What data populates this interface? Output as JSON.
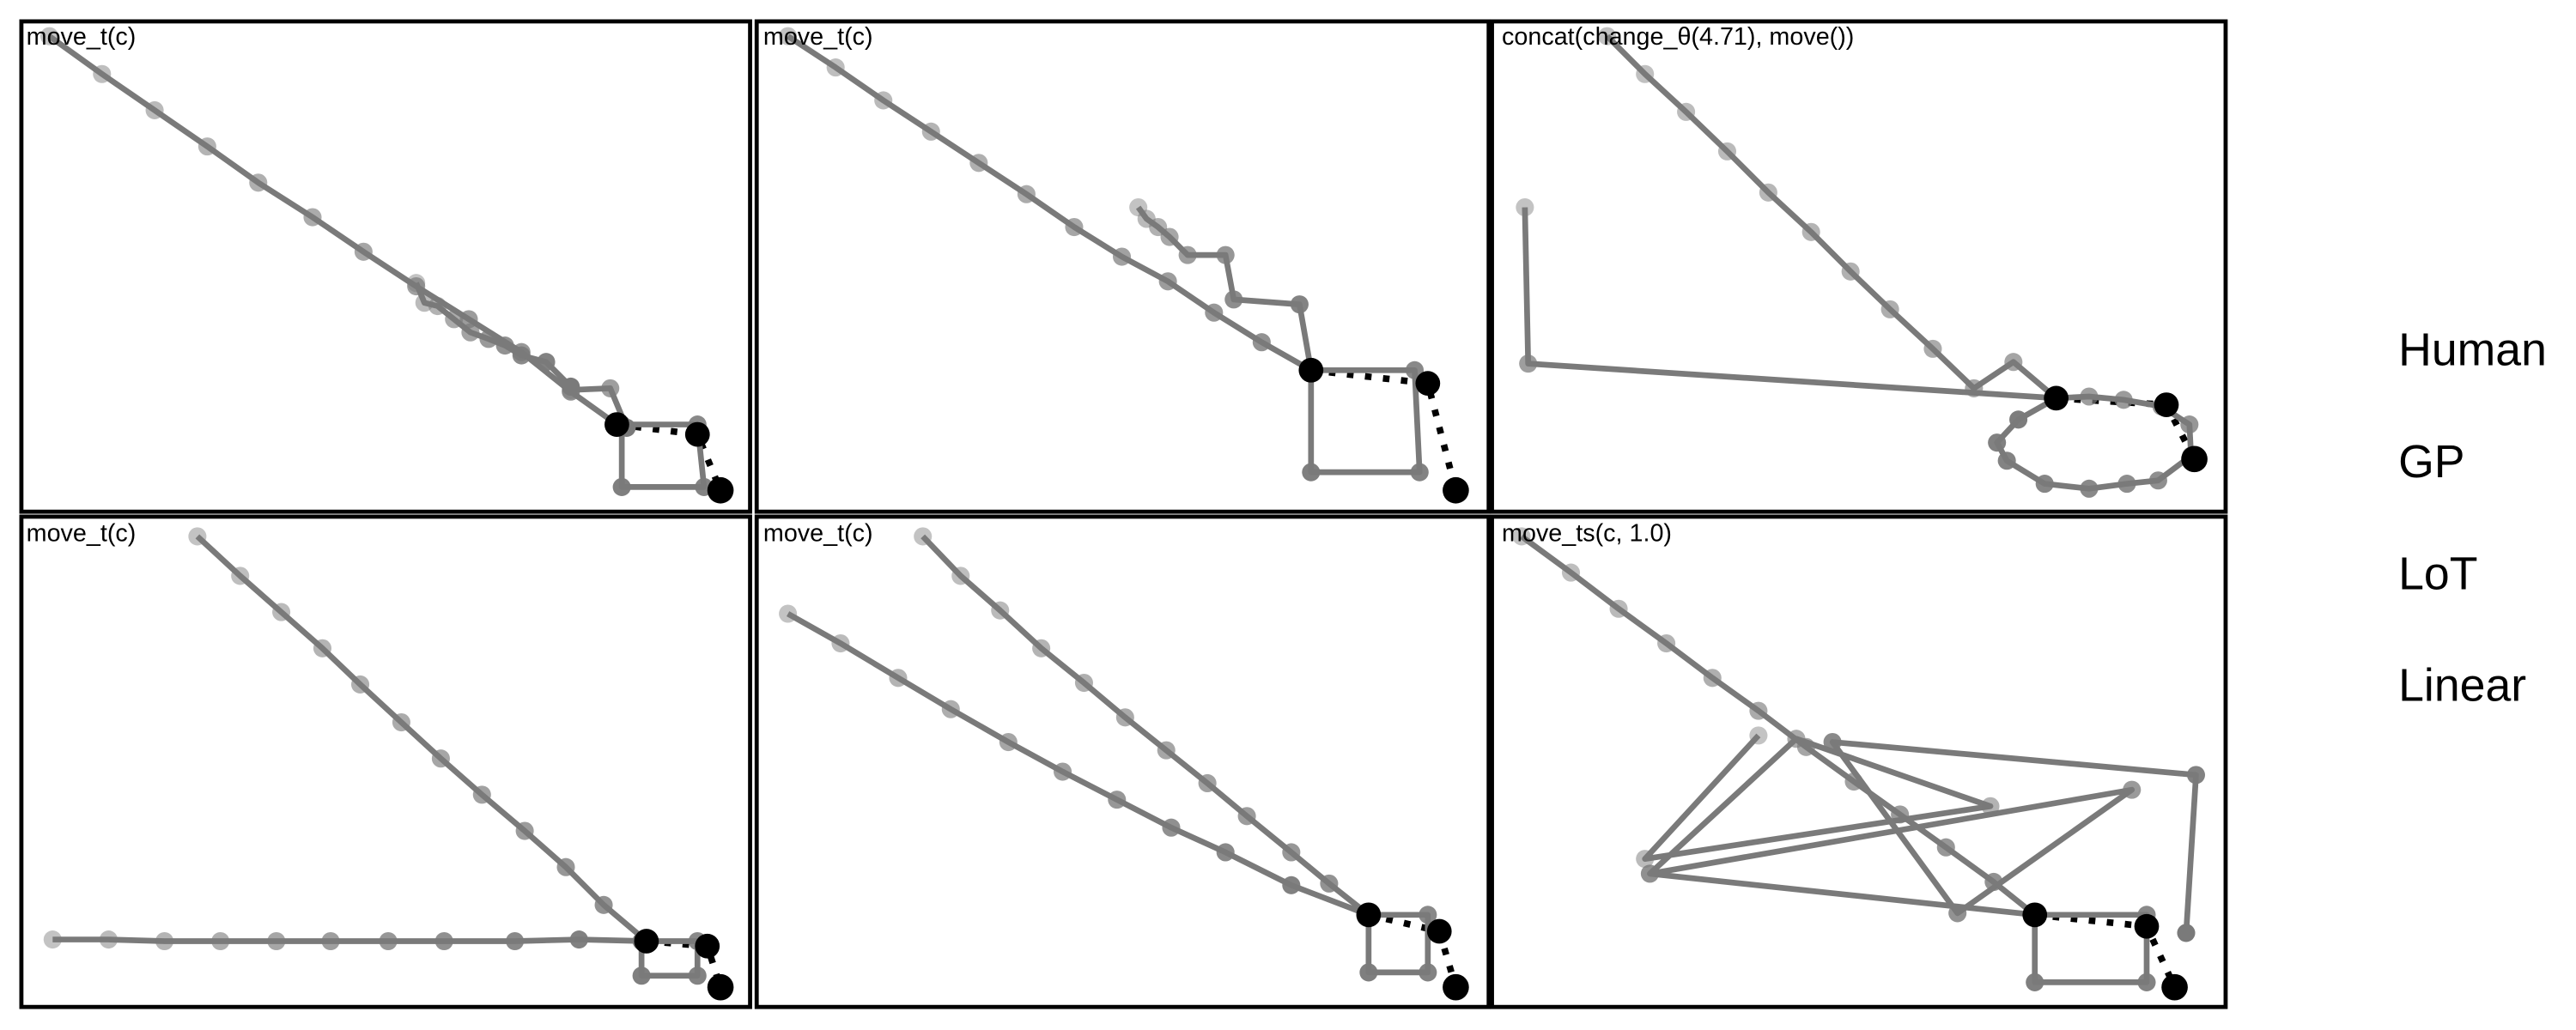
{
  "colors": {
    "trajectory": "#7a7a7a",
    "trajectory_faded": "#a6a6a6",
    "target": "#000000",
    "border": "#000000",
    "background": "#ffffff"
  },
  "legend": [
    "Human",
    "GP",
    "LoT",
    "Linear"
  ],
  "panels": [
    {
      "label": "move_t(c)",
      "target": [
        [
          375,
          258
        ],
        [
          424,
          264
        ],
        [
          438,
          298
        ]
      ],
      "paths": [
        [
          [
            30,
            22
          ],
          [
            62,
            45
          ],
          [
            94,
            67
          ],
          [
            126,
            89
          ],
          [
            157,
            111
          ],
          [
            190,
            132
          ],
          [
            221,
            153
          ],
          [
            253,
            174
          ],
          [
            285,
            194
          ],
          [
            317,
            214
          ],
          [
            347,
            238
          ],
          [
            375,
            258
          ],
          [
            424,
            258
          ],
          [
            428,
            296
          ],
          [
            378,
            296
          ],
          [
            378,
            258
          ]
        ],
        [
          [
            253,
            172
          ],
          [
            258,
            184
          ],
          [
            266,
            186
          ],
          [
            276,
            194
          ],
          [
            286,
            202
          ],
          [
            297,
            206
          ],
          [
            307,
            210
          ],
          [
            317,
            216
          ],
          [
            332,
            220
          ],
          [
            347,
            235
          ]
        ],
        [
          [
            347,
            237
          ],
          [
            371,
            236
          ],
          [
            381,
            260
          ]
        ]
      ]
    },
    {
      "label": "move_t(c)",
      "target": [
        [
          797,
          225
        ],
        [
          868,
          233
        ],
        [
          885,
          298
        ]
      ],
      "paths": [
        [
          [
            479,
            22
          ],
          [
            508,
            41
          ],
          [
            537,
            61
          ],
          [
            566,
            80
          ],
          [
            595,
            99
          ],
          [
            624,
            118
          ],
          [
            653,
            138
          ],
          [
            682,
            156
          ],
          [
            710,
            171
          ],
          [
            738,
            190
          ],
          [
            767,
            208
          ],
          [
            797,
            225
          ],
          [
            860,
            225
          ],
          [
            863,
            287
          ],
          [
            797,
            287
          ],
          [
            797,
            225
          ]
        ],
        [
          [
            692,
            126
          ],
          [
            697,
            133
          ],
          [
            704,
            138
          ],
          [
            711,
            144
          ],
          [
            722,
            155
          ],
          [
            745,
            155
          ],
          [
            750,
            182
          ],
          [
            790,
            185
          ],
          [
            797,
            225
          ]
        ]
      ]
    },
    {
      "label": "concat(change_θ(4.71), move())",
      "target": [
        [
          1250,
          242
        ],
        [
          1317,
          246
        ],
        [
          1334,
          279
        ]
      ],
      "paths": [
        [
          [
            977,
            22
          ],
          [
            1000,
            45
          ],
          [
            1025,
            68
          ],
          [
            1050,
            92
          ],
          [
            1075,
            117
          ],
          [
            1101,
            141
          ],
          [
            1125,
            165
          ],
          [
            1149,
            188
          ],
          [
            1175,
            212
          ],
          [
            1200,
            236
          ],
          [
            1224,
            220
          ],
          [
            1250,
            242
          ],
          [
            1270,
            241
          ],
          [
            1291,
            243
          ],
          [
            1314,
            247
          ],
          [
            1331,
            258
          ],
          [
            1332,
            277
          ],
          [
            1312,
            292
          ],
          [
            1293,
            294
          ],
          [
            1270,
            297
          ],
          [
            1243,
            294
          ],
          [
            1220,
            280
          ],
          [
            1214,
            269
          ],
          [
            1227,
            255
          ],
          [
            1250,
            242
          ]
        ],
        [
          [
            927,
            126
          ],
          [
            929,
            221
          ],
          [
            1250,
            242
          ]
        ]
      ]
    },
    {
      "label": "move_t(c)",
      "target": [
        [
          393,
          572
        ],
        [
          430,
          575
        ],
        [
          438,
          600
        ]
      ],
      "paths": [
        [
          [
            120,
            326
          ],
          [
            146,
            350
          ],
          [
            171,
            372
          ],
          [
            196,
            394
          ],
          [
            219,
            416
          ],
          [
            244,
            439
          ],
          [
            268,
            461
          ],
          [
            293,
            483
          ],
          [
            319,
            505
          ],
          [
            344,
            527
          ],
          [
            367,
            550
          ],
          [
            393,
            572
          ],
          [
            424,
            572
          ],
          [
            424,
            593
          ],
          [
            390,
            593
          ],
          [
            390,
            572
          ]
        ],
        [
          [
            32,
            571
          ],
          [
            66,
            571
          ],
          [
            100,
            572
          ],
          [
            134,
            572
          ],
          [
            168,
            572
          ],
          [
            201,
            572
          ],
          [
            236,
            572
          ],
          [
            270,
            572
          ],
          [
            313,
            572
          ],
          [
            352,
            571
          ],
          [
            393,
            572
          ]
        ]
      ]
    },
    {
      "label": "move_t(c)",
      "target": [
        [
          832,
          556
        ],
        [
          875,
          566
        ],
        [
          885,
          600
        ]
      ],
      "paths": [
        [
          [
            561,
            326
          ],
          [
            584,
            350
          ],
          [
            608,
            371
          ],
          [
            633,
            394
          ],
          [
            659,
            415
          ],
          [
            684,
            436
          ],
          [
            709,
            456
          ],
          [
            734,
            476
          ],
          [
            758,
            496
          ],
          [
            785,
            518
          ],
          [
            808,
            537
          ],
          [
            832,
            556
          ],
          [
            868,
            556
          ],
          [
            868,
            591
          ],
          [
            832,
            591
          ],
          [
            832,
            556
          ]
        ],
        [
          [
            479,
            373
          ],
          [
            511,
            391
          ],
          [
            546,
            412
          ],
          [
            578,
            431
          ],
          [
            613,
            451
          ],
          [
            646,
            469
          ],
          [
            679,
            486
          ],
          [
            712,
            503
          ],
          [
            745,
            518
          ],
          [
            785,
            538
          ],
          [
            832,
            556
          ]
        ]
      ]
    },
    {
      "label": "move_ts(c, 1.0)",
      "target": [
        [
          1237,
          556
        ],
        [
          1305,
          563
        ],
        [
          1322,
          600
        ]
      ],
      "paths": [
        [
          [
            925,
            326
          ],
          [
            955,
            348
          ],
          [
            984,
            370
          ],
          [
            1013,
            391
          ],
          [
            1041,
            412
          ],
          [
            1069,
            432
          ],
          [
            1098,
            454
          ],
          [
            1127,
            475
          ],
          [
            1155,
            495
          ],
          [
            1183,
            515
          ],
          [
            1212,
            536
          ],
          [
            1237,
            556
          ],
          [
            1305,
            556
          ],
          [
            1305,
            597
          ],
          [
            1237,
            597
          ],
          [
            1237,
            556
          ]
        ],
        [
          [
            1069,
            447
          ],
          [
            1000,
            522
          ],
          [
            1210,
            490
          ],
          [
            1092,
            449
          ],
          [
            1003,
            531
          ],
          [
            1296,
            480
          ],
          [
            1190,
            555
          ],
          [
            1114,
            451
          ],
          [
            1335,
            471
          ],
          [
            1329,
            567
          ]
        ],
        [
          [
            1003,
            531
          ],
          [
            1237,
            556
          ]
        ]
      ]
    }
  ]
}
